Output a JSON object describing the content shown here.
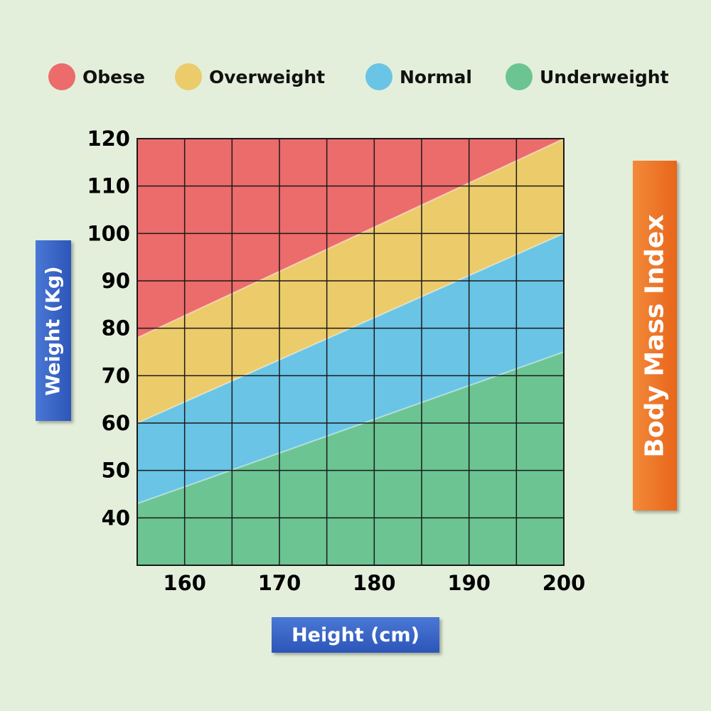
{
  "chart_data": {
    "type": "area",
    "title": "Body Mass Index",
    "xlabel": "Height (cm)",
    "ylabel": "Weight (Kg)",
    "xlim": [
      155,
      200
    ],
    "ylim": [
      30,
      120
    ],
    "x_ticks": [
      160,
      170,
      180,
      190,
      200
    ],
    "y_ticks": [
      40,
      50,
      60,
      70,
      80,
      90,
      100,
      110,
      120
    ],
    "grid": true,
    "legend_position": "top",
    "boundaries": [
      {
        "between": [
          "Underweight",
          "Normal"
        ],
        "x": [
          155,
          200
        ],
        "y": [
          43,
          75
        ]
      },
      {
        "between": [
          "Normal",
          "Overweight"
        ],
        "x": [
          155,
          200
        ],
        "y": [
          60,
          100
        ]
      },
      {
        "between": [
          "Overweight",
          "Obese"
        ],
        "x": [
          155,
          200
        ],
        "y": [
          78,
          120
        ]
      }
    ],
    "series": [
      {
        "name": "Obese",
        "color": "#ec6b6b"
      },
      {
        "name": "Overweight",
        "color": "#eccb6b"
      },
      {
        "name": "Normal",
        "color": "#6ac4e6"
      },
      {
        "name": "Underweight",
        "color": "#6cc492"
      }
    ]
  }
}
